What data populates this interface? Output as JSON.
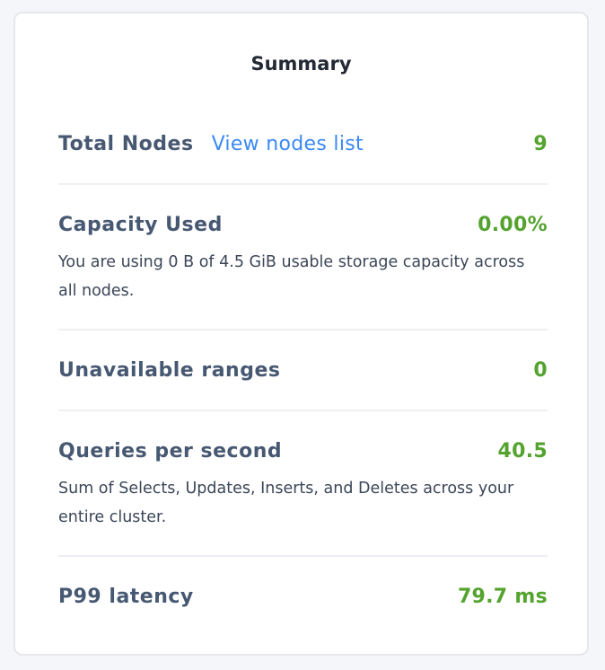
{
  "summary": {
    "title": "Summary",
    "total_nodes": {
      "label": "Total Nodes",
      "link": "View nodes list",
      "value": "9"
    },
    "capacity_used": {
      "label": "Capacity Used",
      "value": "0.00%",
      "description": "You are using 0 B of 4.5 GiB usable storage capacity across all nodes."
    },
    "unavailable_ranges": {
      "label": "Unavailable ranges",
      "value": "0"
    },
    "queries_per_second": {
      "label": "Queries per second",
      "value": "40.5",
      "description": "Sum of Selects, Updates, Inserts, and Deletes across your entire cluster."
    },
    "p99_latency": {
      "label": "P99 latency",
      "value": "79.7 ms"
    }
  },
  "colors": {
    "label": "#475872",
    "link": "#3a89f5",
    "value": "#54a32f",
    "background": "#f5f6fa"
  }
}
